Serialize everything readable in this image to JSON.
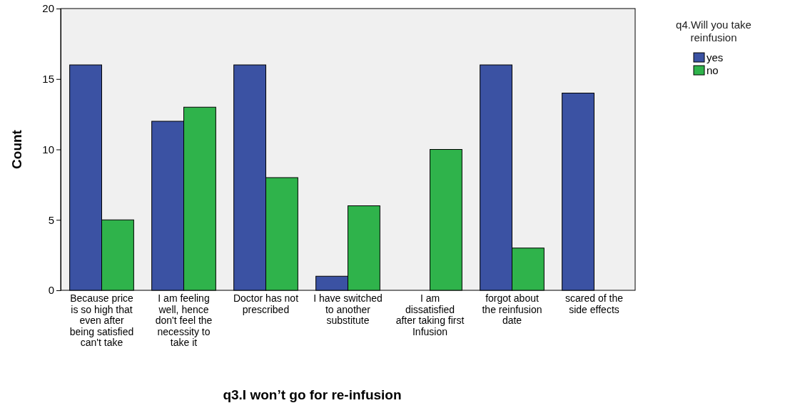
{
  "chart_data": {
    "type": "bar",
    "xlabel": "q3.I won’t go for re-infusion",
    "ylabel": "Count",
    "legend_title": "q4.Will you take reinfusion",
    "categories": [
      "Because price is so high that even after being satisfied can't take",
      "I am feeling well, hence don't feel the necessity to take it",
      "Doctor has not prescribed",
      "I have switched to another substitute",
      "I am dissatisfied after taking first Infusion",
      "forgot about the reinfusion date",
      "scared of the side effects"
    ],
    "series": [
      {
        "name": "yes",
        "color": "#3b52a3",
        "values": [
          16,
          12,
          16,
          1,
          null,
          16,
          14
        ]
      },
      {
        "name": "no",
        "color": "#2fb34b",
        "values": [
          5,
          13,
          8,
          6,
          10,
          3,
          null
        ]
      }
    ],
    "ylim": [
      0,
      20
    ],
    "yticks": [
      0,
      5,
      10,
      15,
      20
    ],
    "grid": false,
    "legend": "top right"
  }
}
